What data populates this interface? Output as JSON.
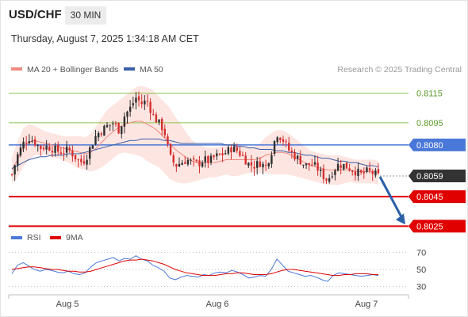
{
  "header": {
    "symbol": "USD/CHF",
    "timeframe": "30 MIN",
    "timestamp": "Thursday, August 7, 2025 1:34:18 AM CET"
  },
  "colors": {
    "ma20": "#f08a80",
    "ma50": "#3b5fa8",
    "band_fill": "#fde0dc",
    "resistance": "#8bc34a",
    "support": "#e00000",
    "pivot": "#4a78d8",
    "current": "#333333",
    "candle_up": "#2f2f2f",
    "candle_down": "#d32f2f",
    "rsi": "#4a78d8",
    "rsi_ma": "#e00000",
    "arrow": "#2b5fa8"
  },
  "chart_data": [
    {
      "type": "candlestick",
      "title": "",
      "legend": [
        {
          "name": "MA 20 + Bollinger Bands",
          "color": "#f08a80"
        },
        {
          "name": "MA 50",
          "color": "#3b5fa8"
        }
      ],
      "legend_position": "top-left",
      "attribution": "Research © 2025 Trading Central",
      "x_tick_labels": [
        "Aug 5",
        "Aug 6",
        "Aug 7"
      ],
      "ylim": [
        0.8015,
        0.8125
      ],
      "grid": false,
      "levels": [
        {
          "label": "0.8115",
          "value": 0.8115,
          "kind": "resistance"
        },
        {
          "label": "0.8095",
          "value": 0.8095,
          "kind": "resistance"
        },
        {
          "label": "0.8080",
          "value": 0.808,
          "kind": "pivot"
        },
        {
          "label": "0.8059",
          "value": 0.8059,
          "kind": "current"
        },
        {
          "label": "0.8045",
          "value": 0.8045,
          "kind": "support"
        },
        {
          "label": "0.8025",
          "value": 0.8025,
          "kind": "support"
        }
      ],
      "price_path": [
        0.806,
        0.8073,
        0.8081,
        0.8085,
        0.8082,
        0.8078,
        0.8079,
        0.8078,
        0.8076,
        0.8075,
        0.8077,
        0.8073,
        0.8068,
        0.807,
        0.8079,
        0.8087,
        0.809,
        0.8093,
        0.8095,
        0.809,
        0.81,
        0.8105,
        0.8112,
        0.8108,
        0.811,
        0.81,
        0.8095,
        0.809,
        0.8072,
        0.8066,
        0.8068,
        0.807,
        0.8068,
        0.8067,
        0.807,
        0.8069,
        0.8072,
        0.8073,
        0.8075,
        0.8078,
        0.8076,
        0.8072,
        0.8067,
        0.8066,
        0.8068,
        0.8065,
        0.8075,
        0.8088,
        0.8084,
        0.8077,
        0.8073,
        0.807,
        0.8066,
        0.8067,
        0.8065,
        0.806,
        0.8056,
        0.8063,
        0.8067,
        0.8066,
        0.8064,
        0.8062,
        0.806,
        0.8062,
        0.8061,
        0.8059
      ],
      "ma20": [
        0.8063,
        0.807,
        0.8078,
        0.8082,
        0.8083,
        0.8082,
        0.8081,
        0.808,
        0.8079,
        0.8078,
        0.8077,
        0.8076,
        0.8075,
        0.8074,
        0.8075,
        0.8078,
        0.8082,
        0.8086,
        0.8089,
        0.8092,
        0.8094,
        0.8095,
        0.8096,
        0.8096,
        0.8094,
        0.8092,
        0.8089,
        0.8085,
        0.8081,
        0.8077,
        0.8074,
        0.8071,
        0.8069,
        0.8068,
        0.8068,
        0.8068,
        0.8068,
        0.8069,
        0.807,
        0.807,
        0.807,
        0.807,
        0.807,
        0.807,
        0.8071,
        0.8073,
        0.8074,
        0.8075,
        0.8075,
        0.8074,
        0.8072,
        0.807,
        0.8068,
        0.8066,
        0.8065,
        0.8064,
        0.8063,
        0.8063,
        0.8063,
        0.8063,
        0.8063,
        0.8062,
        0.8062,
        0.8062,
        0.8062,
        0.8061
      ],
      "ma50": [
        0.8064,
        0.8066,
        0.8068,
        0.807,
        0.8071,
        0.8072,
        0.8072,
        0.8073,
        0.8073,
        0.8073,
        0.8074,
        0.8074,
        0.8074,
        0.8075,
        0.8076,
        0.8077,
        0.8078,
        0.8079,
        0.808,
        0.8081,
        0.8082,
        0.8083,
        0.8083,
        0.8084,
        0.8084,
        0.8084,
        0.8084,
        0.8083,
        0.8083,
        0.8082,
        0.8081,
        0.8081,
        0.8081,
        0.8081,
        0.8081,
        0.8081,
        0.8081,
        0.8081,
        0.808,
        0.808,
        0.8079,
        0.8079,
        0.8078,
        0.8078,
        0.8077,
        0.8077,
        0.8077,
        0.8076,
        0.8076,
        0.8075,
        0.8075,
        0.8074,
        0.8073,
        0.8073,
        0.8072,
        0.8071,
        0.8071,
        0.807,
        0.8069,
        0.8069,
        0.8068,
        0.8068,
        0.8067,
        0.8066,
        0.8066,
        0.8065
      ],
      "band_width": [
        0.0009,
        0.0012,
        0.0013,
        0.0012,
        0.001,
        0.0009,
        0.0008,
        0.0008,
        0.0008,
        0.0008,
        0.0009,
        0.001,
        0.0011,
        0.0011,
        0.0013,
        0.0015,
        0.0017,
        0.0018,
        0.0018,
        0.0018,
        0.0019,
        0.0021,
        0.0023,
        0.0024,
        0.0025,
        0.0025,
        0.0024,
        0.0024,
        0.0024,
        0.0022,
        0.002,
        0.0017,
        0.0014,
        0.0012,
        0.0011,
        0.001,
        0.001,
        0.001,
        0.001,
        0.0011,
        0.0011,
        0.001,
        0.0009,
        0.0009,
        0.001,
        0.0012,
        0.0014,
        0.0015,
        0.0015,
        0.0014,
        0.0013,
        0.0012,
        0.0011,
        0.001,
        0.001,
        0.001,
        0.001,
        0.001,
        0.001,
        0.0009,
        0.0008,
        0.0008,
        0.0008,
        0.0008,
        0.0008,
        0.0008
      ],
      "projection": {
        "from": 0.8059,
        "to": 0.8025
      }
    },
    {
      "type": "line",
      "title": "",
      "legend": [
        {
          "name": "RSI",
          "color": "#4a78d8"
        },
        {
          "name": "9MA",
          "color": "#e00000"
        }
      ],
      "legend_position": "top-left",
      "ylim": [
        25,
        75
      ],
      "y_tick_labels": [
        "70",
        "50",
        "30"
      ],
      "y_ticks": [
        70,
        50,
        30
      ],
      "series": [
        {
          "name": "RSI",
          "values": [
            45,
            55,
            58,
            54,
            50,
            48,
            50,
            49,
            47,
            46,
            48,
            45,
            44,
            46,
            53,
            58,
            60,
            62,
            64,
            60,
            63,
            62,
            66,
            62,
            60,
            55,
            52,
            48,
            40,
            38,
            41,
            43,
            42,
            41,
            44,
            43,
            46,
            47,
            46,
            49,
            47,
            44,
            40,
            41,
            43,
            42,
            50,
            62,
            55,
            48,
            46,
            44,
            42,
            43,
            41,
            38,
            36,
            43,
            46,
            45,
            44,
            43,
            42,
            43,
            44,
            43
          ]
        },
        {
          "name": "9MA",
          "values": [
            50,
            51,
            52,
            53,
            53,
            52,
            51,
            50,
            50,
            49,
            48,
            48,
            47,
            47,
            48,
            50,
            52,
            54,
            56,
            58,
            60,
            61,
            61,
            62,
            61,
            60,
            58,
            56,
            53,
            50,
            48,
            46,
            45,
            44,
            43,
            43,
            43,
            44,
            45,
            45,
            46,
            46,
            45,
            44,
            44,
            44,
            45,
            47,
            49,
            50,
            50,
            49,
            48,
            47,
            46,
            45,
            44,
            43,
            43,
            44,
            44,
            45,
            45,
            45,
            44,
            44
          ]
        }
      ]
    }
  ]
}
